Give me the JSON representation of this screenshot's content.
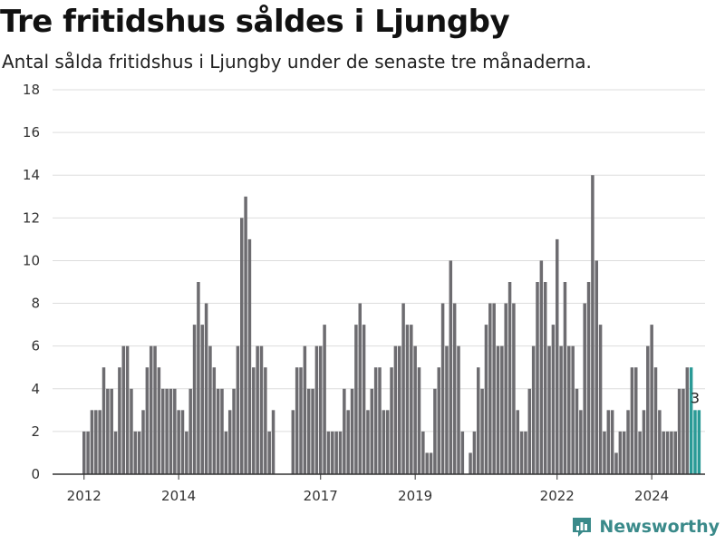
{
  "title": "Tre fritidshus såldes i Ljungby",
  "subtitle": "Antal sålda fritidshus i Ljungby under de senaste tre månaderna.",
  "brand": {
    "name": "Newsworthy"
  },
  "colors": {
    "bar": "#6d6c70",
    "highlight": "#2a9a96",
    "grid": "#dddddd",
    "axis": "#333333",
    "brand": "#3a8a8a"
  },
  "chart_data": {
    "type": "bar",
    "title": "Tre fritidshus såldes i Ljungby",
    "subtitle": "Antal sålda fritidshus i Ljungby under de senaste tre månaderna.",
    "xlabel": "",
    "ylabel": "",
    "ylim": [
      0,
      18
    ],
    "yticks": [
      0,
      2,
      4,
      6,
      8,
      10,
      12,
      14,
      16,
      18
    ],
    "x_tick_labels": [
      {
        "label": "2012",
        "year": 2012
      },
      {
        "label": "2014",
        "year": 2014
      },
      {
        "label": "2017",
        "year": 2017
      },
      {
        "label": "2019",
        "year": 2019
      },
      {
        "label": "2022",
        "year": 2022
      },
      {
        "label": "2024",
        "year": 2024
      }
    ],
    "start": "2012-01",
    "values": [
      2,
      2,
      3,
      3,
      3,
      5,
      4,
      4,
      2,
      5,
      6,
      6,
      4,
      2,
      2,
      3,
      5,
      6,
      6,
      5,
      4,
      4,
      4,
      4,
      3,
      3,
      2,
      4,
      7,
      9,
      7,
      8,
      6,
      5,
      4,
      4,
      2,
      3,
      4,
      6,
      12,
      13,
      11,
      5,
      6,
      6,
      5,
      2,
      3,
      0,
      0,
      0,
      0,
      3,
      5,
      5,
      6,
      4,
      4,
      6,
      6,
      7,
      2,
      2,
      2,
      2,
      4,
      3,
      4,
      7,
      8,
      7,
      3,
      4,
      5,
      5,
      3,
      3,
      5,
      6,
      6,
      8,
      7,
      7,
      6,
      5,
      2,
      1,
      1,
      4,
      5,
      8,
      6,
      10,
      8,
      6,
      2,
      0,
      1,
      2,
      5,
      4,
      7,
      8,
      8,
      6,
      6,
      8,
      9,
      8,
      3,
      2,
      2,
      4,
      6,
      9,
      10,
      9,
      6,
      7,
      11,
      6,
      9,
      6,
      6,
      4,
      3,
      8,
      9,
      14,
      10,
      7,
      2,
      3,
      3,
      1,
      2,
      2,
      3,
      5,
      5,
      2,
      3,
      6,
      7,
      5,
      3,
      2,
      2,
      2,
      2,
      4,
      4,
      5,
      5,
      3,
      3
    ],
    "highlight_count": 3,
    "last_value_label": "3"
  }
}
